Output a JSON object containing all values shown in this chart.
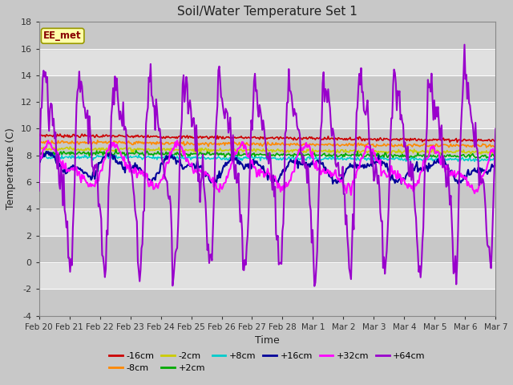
{
  "title": "Soil/Water Temperature Set 1",
  "xlabel": "Time",
  "ylabel": "Temperature (C)",
  "ylim": [
    -4,
    18
  ],
  "yticks": [
    -4,
    -2,
    0,
    2,
    4,
    6,
    8,
    10,
    12,
    14,
    16,
    18
  ],
  "annotation": "EE_met",
  "series": {
    "-16cm": {
      "color": "#cc0000",
      "lw": 1.2
    },
    "-8cm": {
      "color": "#ff8800",
      "lw": 1.2
    },
    "-2cm": {
      "color": "#cccc00",
      "lw": 1.2
    },
    "+2cm": {
      "color": "#00aa00",
      "lw": 1.2
    },
    "+8cm": {
      "color": "#00cccc",
      "lw": 1.2
    },
    "+16cm": {
      "color": "#000099",
      "lw": 1.5
    },
    "+32cm": {
      "color": "#ff00ff",
      "lw": 1.5
    },
    "+64cm": {
      "color": "#9900cc",
      "lw": 1.5
    }
  },
  "n_points": 500,
  "x_start": 0,
  "x_end": 15,
  "xtick_positions": [
    0,
    1,
    2,
    3,
    4,
    5,
    6,
    7,
    8,
    9,
    10,
    11,
    12,
    13,
    14,
    15
  ],
  "xtick_labels": [
    "Feb 20",
    "Feb 21",
    "Feb 22",
    "Feb 23",
    "Feb 24",
    "Feb 25",
    "Feb 26",
    "Feb 27",
    "Feb 28",
    "Mar 1",
    "Mar 2",
    "Mar 3",
    "Mar 4",
    "Mar 5",
    "Mar 6",
    "Mar 7"
  ],
  "legend_order": [
    "-16cm",
    "-8cm",
    "-2cm",
    "+2cm",
    "+8cm",
    "+16cm",
    "+32cm",
    "+64cm"
  ]
}
